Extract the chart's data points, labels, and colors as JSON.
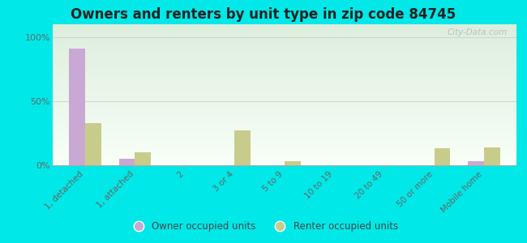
{
  "title": "Owners and renters by unit type in zip code 84745",
  "categories": [
    "1, detached",
    "1, attached",
    "2",
    "3 or 4",
    "5 to 9",
    "10 to 19",
    "20 to 49",
    "50 or more",
    "Mobile home"
  ],
  "owner_values": [
    91,
    5,
    0,
    0,
    0,
    0,
    0,
    0,
    3
  ],
  "renter_values": [
    33,
    10,
    0,
    27,
    3,
    0,
    0,
    13,
    14
  ],
  "owner_color": "#c9a8d4",
  "renter_color": "#c8cc8a",
  "background_color": "#00e8e8",
  "plot_bg_top": "#ddeedd",
  "plot_bg_bottom": "#f8fff8",
  "yticks": [
    0,
    50,
    100
  ],
  "ylim": [
    0,
    110
  ],
  "watermark": "City-Data.com",
  "legend_owner": "Owner occupied units",
  "legend_renter": "Renter occupied units"
}
